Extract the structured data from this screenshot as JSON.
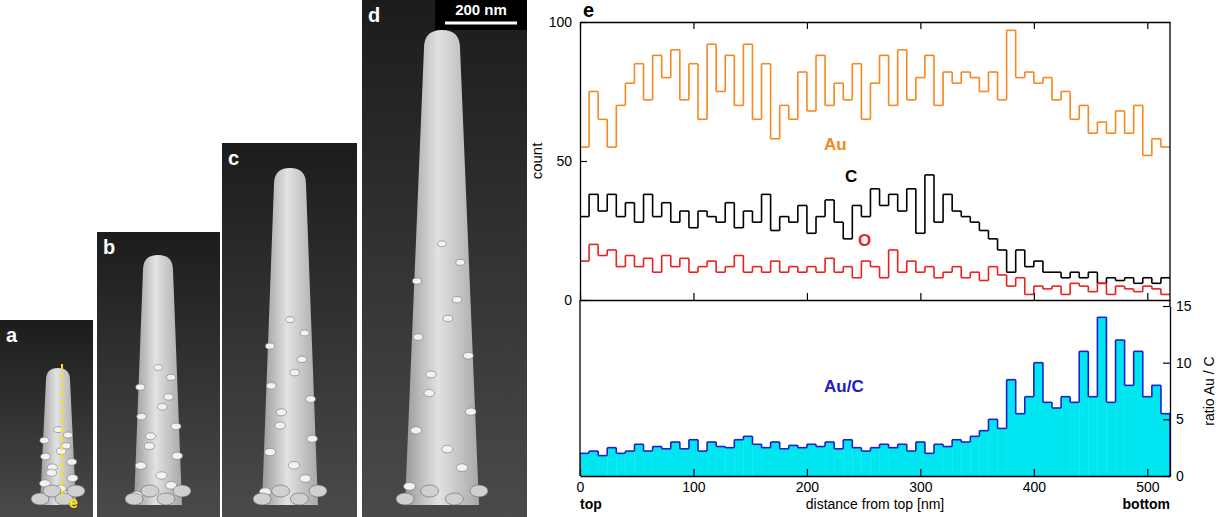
{
  "panels": [
    {
      "label": "a",
      "line_label": "e"
    },
    {
      "label": "b"
    },
    {
      "label": "c"
    },
    {
      "label": "d",
      "scale_bar": "200 nm"
    }
  ],
  "chart_data": [
    {
      "type": "step",
      "title": "e",
      "ylabel": "count",
      "bins": [
        0,
        8,
        16,
        24,
        32,
        40,
        48,
        56,
        64,
        72,
        80,
        88,
        96,
        104,
        112,
        120,
        128,
        136,
        144,
        152,
        160,
        168,
        176,
        184,
        192,
        200,
        208,
        216,
        224,
        232,
        240,
        248,
        256,
        264,
        272,
        280,
        288,
        296,
        304,
        312,
        320,
        328,
        336,
        344,
        352,
        360,
        368,
        376,
        384,
        392,
        400,
        408,
        416,
        424,
        432,
        440,
        448,
        456,
        464,
        472,
        480,
        488,
        496,
        504,
        512,
        520
      ],
      "series": [
        {
          "name": "Au",
          "color": "#f5891f",
          "values": [
            55,
            75,
            65,
            55,
            70,
            78,
            85,
            72,
            88,
            80,
            90,
            72,
            85,
            65,
            92,
            75,
            88,
            70,
            92,
            65,
            85,
            58,
            70,
            65,
            82,
            68,
            88,
            70,
            78,
            72,
            85,
            65,
            78,
            88,
            70,
            90,
            72,
            80,
            88,
            70,
            82,
            78,
            82,
            80,
            75,
            82,
            72,
            97,
            80,
            82,
            78,
            80,
            72,
            75,
            65,
            70,
            60,
            64,
            60,
            68,
            60,
            70,
            52,
            58,
            55
          ]
        },
        {
          "name": "C",
          "color": "#000000",
          "values": [
            30,
            38,
            32,
            38,
            30,
            35,
            28,
            38,
            30,
            35,
            28,
            32,
            26,
            32,
            30,
            28,
            35,
            26,
            32,
            28,
            38,
            25,
            30,
            28,
            34,
            24,
            30,
            36,
            28,
            22,
            34,
            30,
            40,
            34,
            38,
            32,
            40,
            24,
            45,
            28,
            38,
            32,
            30,
            28,
            25,
            22,
            18,
            10,
            18,
            12,
            14,
            10,
            10,
            8,
            10,
            8,
            10,
            6,
            8,
            7,
            8,
            6,
            8,
            6,
            8
          ]
        },
        {
          "name": "O",
          "color": "#e8231f",
          "values": [
            14,
            20,
            16,
            18,
            12,
            16,
            12,
            15,
            10,
            16,
            12,
            15,
            10,
            12,
            14,
            10,
            12,
            16,
            10,
            12,
            10,
            14,
            10,
            12,
            10,
            12,
            10,
            15,
            10,
            12,
            8,
            14,
            12,
            8,
            18,
            10,
            14,
            10,
            12,
            8,
            10,
            12,
            8,
            10,
            7,
            12,
            9,
            5,
            8,
            2,
            5,
            4,
            5,
            2,
            6,
            5,
            3,
            6,
            2,
            5,
            4,
            3,
            5,
            4,
            2
          ]
        }
      ],
      "xlim": [
        0,
        520
      ],
      "xticks": [
        0,
        100,
        200,
        300,
        400,
        500
      ],
      "ylim": [
        0,
        100
      ],
      "yticks": [
        0,
        50,
        100
      ],
      "tick_labels": "y"
    },
    {
      "type": "step",
      "xlabel": "distance from top  [nm]",
      "ylabel": "ratio  Au / C",
      "bins": [
        0,
        8,
        16,
        24,
        32,
        40,
        48,
        56,
        64,
        72,
        80,
        88,
        96,
        104,
        112,
        120,
        128,
        136,
        144,
        152,
        160,
        168,
        176,
        184,
        192,
        200,
        208,
        216,
        224,
        232,
        240,
        248,
        256,
        264,
        272,
        280,
        288,
        296,
        304,
        312,
        320,
        328,
        336,
        344,
        352,
        360,
        368,
        376,
        384,
        392,
        400,
        408,
        416,
        424,
        432,
        440,
        448,
        456,
        464,
        472,
        480,
        488,
        496,
        504,
        512,
        520
      ],
      "series": [
        {
          "name": "Au/C",
          "color": "#2020c8",
          "axis": "y2",
          "values": [
            2,
            2.2,
            1.8,
            2.5,
            2,
            2.2,
            2.8,
            2.2,
            2.6,
            2.4,
            3,
            2.4,
            3.2,
            2.2,
            3,
            2.6,
            2.5,
            3.2,
            3.5,
            2.8,
            2.5,
            3,
            2.4,
            2.7,
            2.5,
            2.8,
            2.6,
            3,
            2.4,
            3.2,
            2.5,
            2.2,
            2.5,
            2.8,
            2.5,
            2.8,
            2.2,
            3,
            2,
            2.8,
            2.6,
            3.2,
            3,
            3.5,
            4,
            5,
            4.2,
            8.5,
            5.5,
            7,
            10,
            6.5,
            6,
            7,
            6.5,
            11,
            7,
            14,
            6.5,
            12,
            8,
            11,
            7,
            8,
            5.5
          ]
        }
      ],
      "xlim": [
        0,
        520
      ],
      "xticks": [
        0,
        100,
        200,
        300,
        400,
        500
      ],
      "y2lim": [
        0,
        15
      ],
      "y2ticks": [
        0,
        5,
        10,
        15
      ],
      "annotations": [
        {
          "text": "top",
          "x": 0
        },
        {
          "text": "bottom",
          "x": 520
        }
      ]
    }
  ]
}
